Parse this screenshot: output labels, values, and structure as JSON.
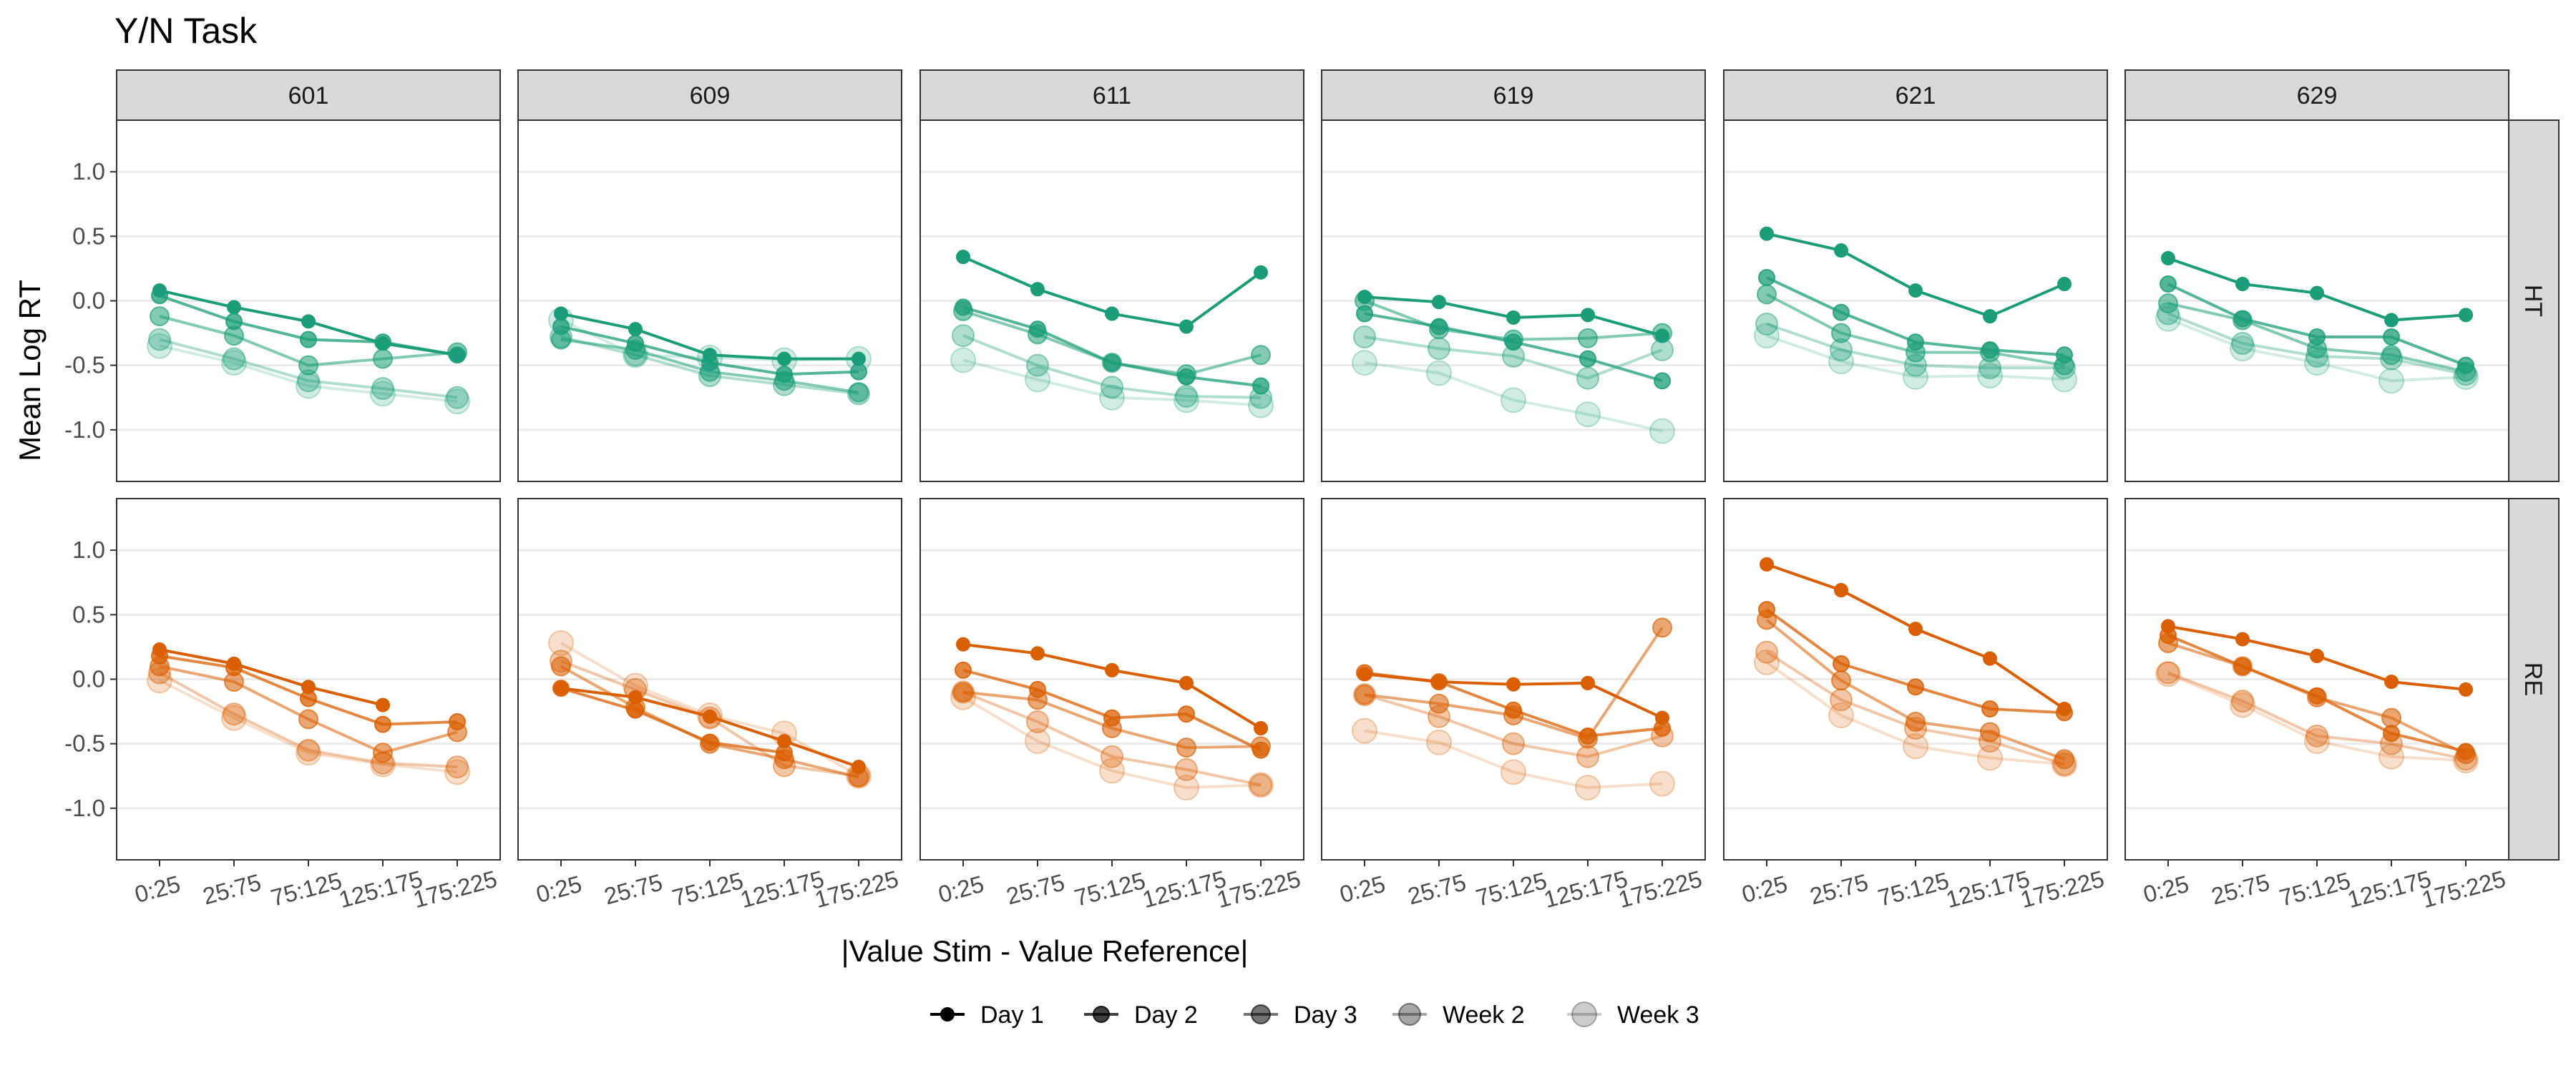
{
  "chart_data": {
    "type": "line",
    "title": "Y/N Task",
    "xlabel": "|Value Stim - Value Reference|",
    "ylabel": "Mean Log RT",
    "ylim": [
      -1.4,
      1.4
    ],
    "yticks": [
      "1.0",
      "0.5",
      "0.0",
      "-0.5",
      "-1.0"
    ],
    "ytick_values": [
      1.0,
      0.5,
      0.0,
      -0.5,
      -1.0
    ],
    "categories": [
      "0:25",
      "25:75",
      "75:125",
      "125:175",
      "175:225"
    ],
    "grid": true,
    "legend_position": "bottom",
    "legend": [
      "Day 1",
      "Day 2",
      "Day 3",
      "Week 2",
      "Week 3"
    ],
    "series_names": [
      "Day 1",
      "Day 2",
      "Day 3",
      "Week 2",
      "Week 3"
    ],
    "series_alpha": [
      1.0,
      0.75,
      0.55,
      0.35,
      0.2
    ],
    "series_point_size": [
      9,
      11,
      13,
      15,
      17
    ],
    "participants": [
      "601",
      "609",
      "611",
      "619",
      "621",
      "629"
    ],
    "rows": [
      {
        "label": "HT",
        "color": "#1b9e77",
        "panels": [
          {
            "participant": "601",
            "series": [
              {
                "name": "Day 1",
                "values": [
                  0.08,
                  -0.05,
                  -0.16,
                  -0.33,
                  -0.42
                ]
              },
              {
                "name": "Day 2",
                "values": [
                  0.04,
                  -0.16,
                  -0.3,
                  -0.32,
                  -0.42
                ]
              },
              {
                "name": "Day 3",
                "values": [
                  -0.12,
                  -0.27,
                  -0.5,
                  -0.45,
                  -0.4
                ]
              },
              {
                "name": "Week 2",
                "values": [
                  -0.3,
                  -0.45,
                  -0.62,
                  -0.68,
                  -0.75
                ]
              },
              {
                "name": "Week 3",
                "values": [
                  -0.35,
                  -0.48,
                  -0.66,
                  -0.72,
                  -0.78
                ]
              }
            ]
          },
          {
            "participant": "609",
            "series": [
              {
                "name": "Day 1",
                "values": [
                  -0.1,
                  -0.22,
                  -0.42,
                  -0.45,
                  -0.45
                ]
              },
              {
                "name": "Day 2",
                "values": [
                  -0.2,
                  -0.33,
                  -0.48,
                  -0.57,
                  -0.55
                ]
              },
              {
                "name": "Day 3",
                "values": [
                  -0.3,
                  -0.38,
                  -0.55,
                  -0.62,
                  -0.71
                ]
              },
              {
                "name": "Week 2",
                "values": [
                  -0.28,
                  -0.42,
                  -0.58,
                  -0.65,
                  -0.72
                ]
              },
              {
                "name": "Week 3",
                "values": [
                  -0.15,
                  -0.42,
                  -0.44,
                  -0.46,
                  -0.45
                ]
              }
            ]
          },
          {
            "participant": "611",
            "series": [
              {
                "name": "Day 1",
                "values": [
                  0.34,
                  0.09,
                  -0.1,
                  -0.2,
                  0.22
                ]
              },
              {
                "name": "Day 2",
                "values": [
                  -0.05,
                  -0.22,
                  -0.48,
                  -0.59,
                  -0.66
                ]
              },
              {
                "name": "Day 3",
                "values": [
                  -0.08,
                  -0.26,
                  -0.48,
                  -0.57,
                  -0.42
                ]
              },
              {
                "name": "Week 2",
                "values": [
                  -0.27,
                  -0.5,
                  -0.67,
                  -0.74,
                  -0.75
                ]
              },
              {
                "name": "Week 3",
                "values": [
                  -0.46,
                  -0.61,
                  -0.75,
                  -0.77,
                  -0.81
                ]
              }
            ]
          },
          {
            "participant": "619",
            "series": [
              {
                "name": "Day 1",
                "values": [
                  0.03,
                  -0.01,
                  -0.13,
                  -0.11,
                  -0.27
                ]
              },
              {
                "name": "Day 2",
                "values": [
                  -0.1,
                  -0.2,
                  -0.32,
                  -0.45,
                  -0.62
                ]
              },
              {
                "name": "Day 3",
                "values": [
                  0.0,
                  -0.22,
                  -0.3,
                  -0.29,
                  -0.25
                ]
              },
              {
                "name": "Week 2",
                "values": [
                  -0.28,
                  -0.37,
                  -0.43,
                  -0.6,
                  -0.38
                ]
              },
              {
                "name": "Week 3",
                "values": [
                  -0.48,
                  -0.56,
                  -0.77,
                  -0.88,
                  -1.01
                ]
              }
            ]
          },
          {
            "participant": "621",
            "series": [
              {
                "name": "Day 1",
                "values": [
                  0.52,
                  0.39,
                  0.08,
                  -0.12,
                  0.13
                ]
              },
              {
                "name": "Day 2",
                "values": [
                  0.18,
                  -0.09,
                  -0.32,
                  -0.38,
                  -0.42
                ]
              },
              {
                "name": "Day 3",
                "values": [
                  0.05,
                  -0.25,
                  -0.4,
                  -0.4,
                  -0.5
                ]
              },
              {
                "name": "Week 2",
                "values": [
                  -0.18,
                  -0.38,
                  -0.5,
                  -0.52,
                  -0.52
                ]
              },
              {
                "name": "Week 3",
                "values": [
                  -0.27,
                  -0.47,
                  -0.59,
                  -0.58,
                  -0.61
                ]
              }
            ]
          },
          {
            "participant": "629",
            "series": [
              {
                "name": "Day 1",
                "values": [
                  0.33,
                  0.13,
                  0.06,
                  -0.15,
                  -0.11
                ]
              },
              {
                "name": "Day 2",
                "values": [
                  0.13,
                  -0.14,
                  -0.28,
                  -0.28,
                  -0.5
                ]
              },
              {
                "name": "Day 3",
                "values": [
                  -0.02,
                  -0.15,
                  -0.37,
                  -0.42,
                  -0.55
                ]
              },
              {
                "name": "Week 2",
                "values": [
                  -0.1,
                  -0.33,
                  -0.43,
                  -0.45,
                  -0.57
                ]
              },
              {
                "name": "Week 3",
                "values": [
                  -0.14,
                  -0.37,
                  -0.48,
                  -0.62,
                  -0.59
                ]
              }
            ]
          }
        ]
      },
      {
        "label": "RE",
        "color": "#d95f02",
        "panels": [
          {
            "participant": "601",
            "series": [
              {
                "name": "Day 1",
                "values": [
                  0.23,
                  0.12,
                  -0.06,
                  -0.2,
                  null
                ]
              },
              {
                "name": "Day 2",
                "values": [
                  0.18,
                  0.09,
                  -0.15,
                  -0.35,
                  -0.33
                ]
              },
              {
                "name": "Day 3",
                "values": [
                  0.1,
                  -0.02,
                  -0.31,
                  -0.57,
                  -0.41
                ]
              },
              {
                "name": "Week 2",
                "values": [
                  0.05,
                  -0.27,
                  -0.55,
                  -0.65,
                  -0.68
                ]
              },
              {
                "name": "Week 3",
                "values": [
                  -0.01,
                  -0.3,
                  -0.57,
                  -0.66,
                  -0.72
                ]
              }
            ]
          },
          {
            "participant": "609",
            "series": [
              {
                "name": "Day 1",
                "values": [
                  -0.07,
                  -0.14,
                  -0.29,
                  -0.48,
                  -0.68
                ]
              },
              {
                "name": "Day 2",
                "values": [
                  -0.07,
                  -0.24,
                  -0.49,
                  -0.57,
                  null
                ]
              },
              {
                "name": "Day 3",
                "values": [
                  0.1,
                  -0.22,
                  -0.5,
                  -0.62,
                  -0.76
                ]
              },
              {
                "name": "Week 2",
                "values": [
                  0.14,
                  -0.08,
                  -0.3,
                  -0.67,
                  -0.75
                ]
              },
              {
                "name": "Week 3",
                "values": [
                  0.28,
                  -0.05,
                  -0.28,
                  -0.42,
                  -0.75
                ]
              }
            ]
          },
          {
            "participant": "611",
            "series": [
              {
                "name": "Day 1",
                "values": [
                  0.27,
                  0.2,
                  0.07,
                  -0.03,
                  -0.38
                ]
              },
              {
                "name": "Day 2",
                "values": [
                  0.07,
                  -0.08,
                  -0.3,
                  -0.27,
                  -0.55
                ]
              },
              {
                "name": "Day 3",
                "values": [
                  -0.1,
                  -0.16,
                  -0.38,
                  -0.53,
                  -0.52
                ]
              },
              {
                "name": "Week 2",
                "values": [
                  -0.1,
                  -0.33,
                  -0.6,
                  -0.7,
                  -0.82
                ]
              },
              {
                "name": "Week 3",
                "values": [
                  -0.14,
                  -0.48,
                  -0.71,
                  -0.84,
                  -0.82
                ]
              }
            ]
          },
          {
            "participant": "619",
            "series": [
              {
                "name": "Day 1",
                "values": [
                  0.04,
                  -0.02,
                  -0.04,
                  -0.03,
                  -0.3
                ]
              },
              {
                "name": "Day 2",
                "values": [
                  0.05,
                  -0.02,
                  -0.24,
                  -0.44,
                  -0.38
                ]
              },
              {
                "name": "Day 3",
                "values": [
                  -0.12,
                  -0.19,
                  -0.28,
                  -0.46,
                  0.4
                ]
              },
              {
                "name": "Week 2",
                "values": [
                  -0.12,
                  -0.29,
                  -0.5,
                  -0.6,
                  -0.44
                ]
              },
              {
                "name": "Week 3",
                "values": [
                  -0.4,
                  -0.49,
                  -0.72,
                  -0.84,
                  -0.81
                ]
              }
            ]
          },
          {
            "participant": "621",
            "series": [
              {
                "name": "Day 1",
                "values": [
                  0.89,
                  0.69,
                  0.39,
                  0.16,
                  -0.23
                ]
              },
              {
                "name": "Day 2",
                "values": [
                  0.54,
                  0.12,
                  -0.06,
                  -0.23,
                  -0.26
                ]
              },
              {
                "name": "Day 3",
                "values": [
                  0.46,
                  -0.01,
                  -0.33,
                  -0.41,
                  -0.62
                ]
              },
              {
                "name": "Week 2",
                "values": [
                  0.21,
                  -0.16,
                  -0.38,
                  -0.48,
                  -0.66
                ]
              },
              {
                "name": "Week 3",
                "values": [
                  0.13,
                  -0.28,
                  -0.52,
                  -0.61,
                  -0.66
                ]
              }
            ]
          },
          {
            "participant": "629",
            "series": [
              {
                "name": "Day 1",
                "values": [
                  0.41,
                  0.31,
                  0.18,
                  -0.02,
                  -0.08
                ]
              },
              {
                "name": "Day 2",
                "values": [
                  0.34,
                  0.1,
                  -0.13,
                  -0.42,
                  -0.56
                ]
              },
              {
                "name": "Day 3",
                "values": [
                  0.28,
                  0.1,
                  -0.14,
                  -0.3,
                  -0.58
                ]
              },
              {
                "name": "Week 2",
                "values": [
                  0.05,
                  -0.17,
                  -0.44,
                  -0.5,
                  -0.62
                ]
              },
              {
                "name": "Week 3",
                "values": [
                  0.04,
                  -0.2,
                  -0.48,
                  -0.6,
                  -0.63
                ]
              }
            ]
          }
        ]
      }
    ]
  }
}
